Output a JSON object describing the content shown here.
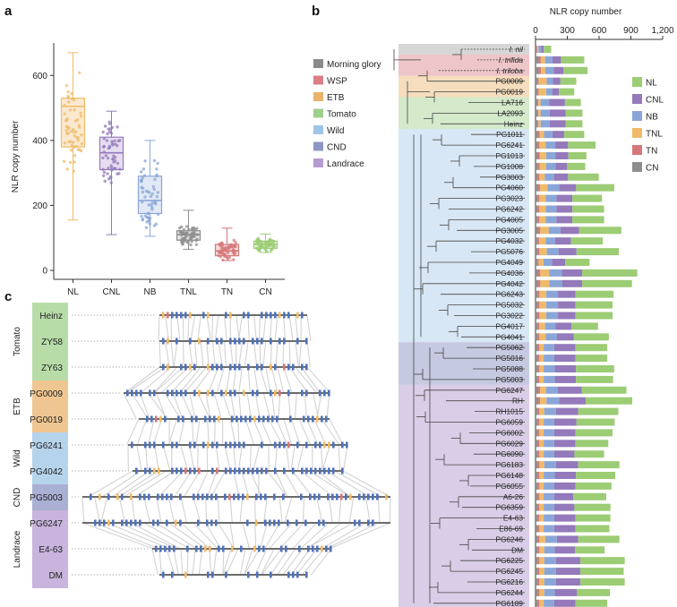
{
  "panels": {
    "a": "a",
    "b": "b",
    "c": "c"
  },
  "colors": {
    "morning_glory": "#8a8a8a",
    "WSP": "#d97f85",
    "ETB": "#e9b36c",
    "Tomato": "#9fd08b",
    "Wild": "#9ec4e6",
    "CND": "#8e96c4",
    "Landrace": "#b59bd0",
    "NL": "#9ccc74",
    "CNL": "#9479bb",
    "NB": "#8aa6d8",
    "TNL": "#efbb6a",
    "TN": "#d5787a",
    "CN": "#8e8e8e"
  },
  "chart_data": [
    {
      "panel": "a",
      "type": "box",
      "ylabel": "NLR copy number",
      "categories": [
        "NL",
        "CNL",
        "NB",
        "TNL",
        "TN",
        "CN"
      ],
      "yticks": [
        0,
        200,
        400,
        600
      ],
      "ylim": [
        0,
        700
      ],
      "boxes": [
        {
          "name": "NL",
          "min": 155,
          "q1": 380,
          "median": 505,
          "q3": 530,
          "max": 670
        },
        {
          "name": "CNL",
          "min": 110,
          "q1": 310,
          "median": 362,
          "q3": 410,
          "max": 490
        },
        {
          "name": "NB",
          "min": 105,
          "q1": 175,
          "median": 215,
          "q3": 290,
          "max": 400
        },
        {
          "name": "TNL",
          "min": 65,
          "q1": 93,
          "median": 110,
          "q3": 122,
          "max": 185
        },
        {
          "name": "TN",
          "min": 30,
          "q1": 45,
          "median": 60,
          "q3": 80,
          "max": 130
        },
        {
          "name": "CN",
          "min": 55,
          "q1": 68,
          "median": 80,
          "q3": 90,
          "max": 112
        }
      ]
    },
    {
      "panel": "b",
      "type": "bar",
      "stacked": true,
      "orientation": "horizontal",
      "xlabel": "NLR copy number",
      "xticks": [
        "0",
        "300",
        "600",
        "900",
        "1,200"
      ],
      "xlim": [
        0,
        1200
      ],
      "legend": [
        "NL",
        "CNL",
        "NB",
        "TNL",
        "TN",
        "CN"
      ],
      "groups_legend": [
        "Morning glory",
        "WSP",
        "ETB",
        "Tomato",
        "Wild",
        "CND",
        "Landrace"
      ],
      "categories": [
        "I. nil",
        "I. trifida",
        "I. triloba",
        "PG0009",
        "PG0019",
        "LA716",
        "LA2093",
        "Heinz",
        "PG1011",
        "PG6241",
        "PG1013",
        "PG1008",
        "PG3003",
        "PG4060",
        "PG3023",
        "PG6242",
        "PG4005",
        "PG3005",
        "PG4032",
        "PG5076",
        "PG4049",
        "PG4036",
        "PG4042",
        "PG6243",
        "PG5032",
        "PG3022",
        "PG4017",
        "PG4041",
        "PG5062",
        "PG5016",
        "PG5088",
        "PG5003",
        "PG6247",
        "RH",
        "RH1015",
        "PG6059",
        "PG6002",
        "PG6029",
        "PG6090",
        "PG6183",
        "PG6148",
        "PG6055",
        "A6-26",
        "PG6359",
        "E4-63",
        "E86-69",
        "PG6246",
        "DM",
        "PG6225",
        "PG6245",
        "PG6216",
        "PG6244",
        "PG6189"
      ],
      "series": [
        {
          "name": "CN",
          "values": [
            10,
            30,
            30,
            20,
            20,
            18,
            18,
            18,
            25,
            22,
            25,
            24,
            22,
            25,
            22,
            22,
            22,
            25,
            20,
            22,
            18,
            25,
            25,
            22,
            22,
            22,
            20,
            22,
            22,
            22,
            22,
            22,
            25,
            25,
            22,
            22,
            22,
            22,
            22,
            22,
            22,
            22,
            22,
            22,
            22,
            22,
            22,
            22,
            22,
            22,
            22,
            22,
            22
          ]
        },
        {
          "name": "TN",
          "values": [
            8,
            20,
            22,
            10,
            10,
            10,
            10,
            10,
            15,
            15,
            15,
            15,
            15,
            18,
            15,
            15,
            15,
            20,
            15,
            15,
            12,
            20,
            20,
            15,
            15,
            15,
            15,
            15,
            15,
            15,
            15,
            15,
            18,
            18,
            15,
            15,
            15,
            15,
            15,
            15,
            15,
            15,
            15,
            15,
            15,
            15,
            15,
            15,
            15,
            15,
            15,
            15,
            15
          ]
        },
        {
          "name": "TNL",
          "values": [
            10,
            40,
            40,
            75,
            70,
            20,
            20,
            20,
            40,
            60,
            60,
            60,
            50,
            70,
            60,
            60,
            60,
            80,
            60,
            70,
            45,
            85,
            85,
            65,
            65,
            65,
            55,
            60,
            40,
            40,
            40,
            40,
            55,
            60,
            45,
            40,
            40,
            40,
            40,
            45,
            40,
            40,
            40,
            40,
            40,
            40,
            55,
            45,
            45,
            45,
            45,
            45,
            40
          ]
        },
        {
          "name": "NB",
          "values": [
            25,
            70,
            80,
            60,
            60,
            80,
            85,
            85,
            80,
            90,
            90,
            90,
            90,
            110,
            100,
            100,
            100,
            110,
            90,
            110,
            80,
            120,
            120,
            110,
            110,
            110,
            100,
            105,
            100,
            100,
            105,
            105,
            110,
            120,
            110,
            100,
            100,
            100,
            100,
            110,
            105,
            100,
            100,
            100,
            100,
            100,
            110,
            100,
            110,
            110,
            110,
            100,
            100
          ]
        },
        {
          "name": "CNL",
          "values": [
            25,
            80,
            90,
            70,
            60,
            150,
            150,
            150,
            110,
            120,
            120,
            110,
            130,
            160,
            150,
            150,
            150,
            175,
            150,
            170,
            125,
            190,
            190,
            165,
            165,
            165,
            150,
            160,
            200,
            200,
            200,
            200,
            230,
            250,
            210,
            210,
            200,
            200,
            190,
            210,
            200,
            200,
            180,
            190,
            200,
            200,
            200,
            190,
            230,
            230,
            230,
            210,
            200
          ]
        },
        {
          "name": "NL",
          "values": [
            70,
            220,
            230,
            150,
            145,
            150,
            160,
            160,
            190,
            260,
            170,
            170,
            290,
            360,
            280,
            300,
            300,
            400,
            300,
            400,
            230,
            520,
            470,
            360,
            350,
            350,
            250,
            330,
            300,
            300,
            360,
            350,
            420,
            440,
            380,
            360,
            350,
            310,
            280,
            390,
            370,
            340,
            310,
            340,
            330,
            320,
            390,
            280,
            420,
            410,
            420,
            310,
            300
          ]
        }
      ]
    },
    {
      "panel": "c",
      "type": "diagram",
      "rows": [
        {
          "group": "Tomato",
          "label": "Heinz"
        },
        {
          "group": "Tomato",
          "label": "ZY58"
        },
        {
          "group": "Tomato",
          "label": "ZY63"
        },
        {
          "group": "ETB",
          "label": "PG0009"
        },
        {
          "group": "ETB",
          "label": "PG0019"
        },
        {
          "group": "Wild",
          "label": "PG6241"
        },
        {
          "group": "Wild",
          "label": "PG4042"
        },
        {
          "group": "CND",
          "label": "PG5003"
        },
        {
          "group": "Landrace",
          "label": "PG6247"
        },
        {
          "group": "Landrace",
          "label": "E4-63"
        },
        {
          "group": "Landrace",
          "label": "DM"
        }
      ],
      "groups": [
        "Tomato",
        "ETB",
        "Wild",
        "CND",
        "Landrace"
      ]
    }
  ]
}
